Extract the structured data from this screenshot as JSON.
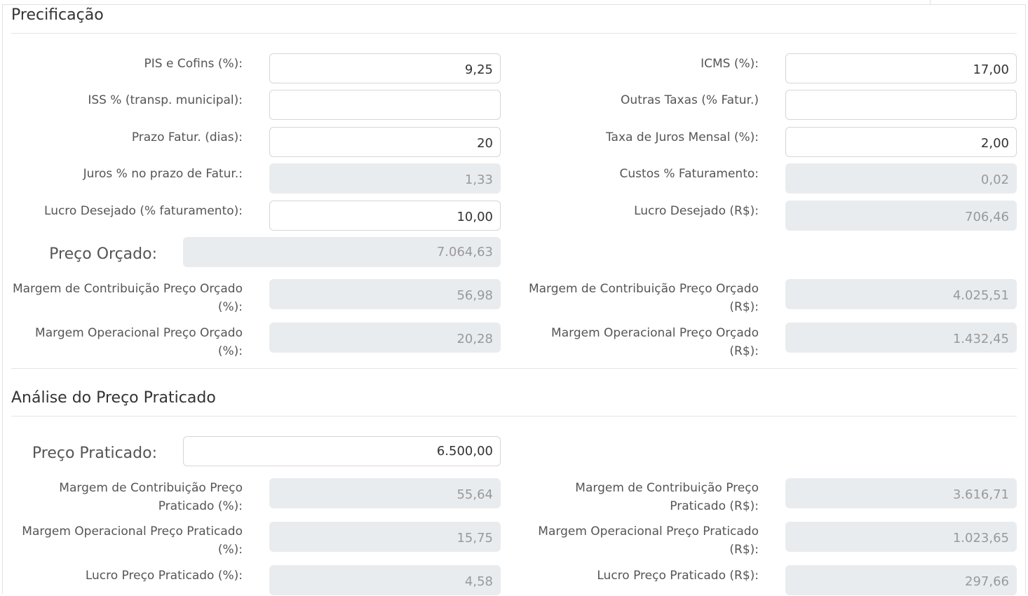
{
  "precificacao": {
    "title": "Precificação",
    "pis_cofins": {
      "label": "PIS e Cofins (%):",
      "value": "9,25"
    },
    "icms": {
      "label": "ICMS (%):",
      "value": "17,00"
    },
    "iss": {
      "label": "ISS % (transp. municipal):",
      "value": ""
    },
    "outras_taxas": {
      "label": "Outras Taxas (% Fatur.)",
      "value": ""
    },
    "prazo_fatur": {
      "label": "Prazo Fatur. (dias):",
      "value": "20"
    },
    "taxa_juros": {
      "label": "Taxa de Juros Mensal (%):",
      "value": "2,00"
    },
    "juros_prazo": {
      "label": "Juros % no prazo de Fatur.:",
      "value": "1,33"
    },
    "custos_fat": {
      "label": "Custos % Faturamento:",
      "value": "0,02"
    },
    "lucro_pct": {
      "label": "Lucro Desejado (% faturamento):",
      "value": "10,00"
    },
    "lucro_rs": {
      "label": "Lucro Desejado (R$):",
      "value": "706,46"
    },
    "preco_orcado": {
      "label": "Preço Orçado:",
      "value": "7.064,63"
    },
    "mc_orcado_pct": {
      "label_line1": "Margem de Contribuição Preço Orçado",
      "label_line2": "(%):",
      "value": "56,98"
    },
    "mc_orcado_rs": {
      "label_line1": "Margem de Contribuição Preço Orçado",
      "label_line2": "(R$):",
      "value": "4.025,51"
    },
    "mo_orcado_pct": {
      "label": "Margem Operacional Preço Orçado (%):",
      "value": "20,28"
    },
    "mo_orcado_rs": {
      "label": "Margem Operacional Preço Orçado (R$):",
      "value": "1.432,45"
    }
  },
  "analise": {
    "title": "Análise do Preço Praticado",
    "preco_praticado": {
      "label": "Preço Praticado:",
      "value": "6.500,00"
    },
    "mc_pratic_pct": {
      "label_line1": "Margem de Contribuição Preço",
      "label_line2": "Praticado (%):",
      "value": "55,64"
    },
    "mc_pratic_rs": {
      "label_line1": "Margem de Contribuição Preço",
      "label_line2": "Praticado (R$):",
      "value": "3.616,71"
    },
    "mo_pratic_pct": {
      "label_line1": "Margem Operacional Preço Praticado",
      "label_line2": "(%):",
      "value": "15,75"
    },
    "mo_pratic_rs": {
      "label_line1": "Margem Operacional Preço Praticado",
      "label_line2": "(R$):",
      "value": "1.023,65"
    },
    "lucro_pratic_pct": {
      "label": "Lucro Preço Praticado (%):",
      "value": "4,58"
    },
    "lucro_pratic_rs": {
      "label": "Lucro Preço Praticado (R$):",
      "value": "297,66"
    }
  }
}
